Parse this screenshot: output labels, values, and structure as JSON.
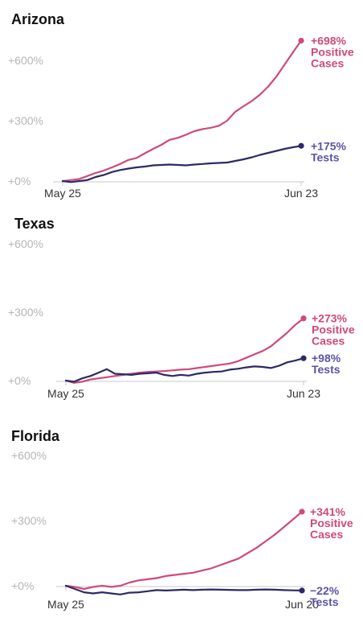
{
  "colors": {
    "cases": "#cf4a78",
    "tests": "#2c2a66",
    "tests_label": "#5d52a8",
    "grid": "#e3e3e3",
    "axis": "#c8c8c8"
  },
  "chart_data": [
    {
      "type": "line",
      "title": "Arizona",
      "x": [
        "May 25",
        "May 26",
        "May 27",
        "May 28",
        "May 29",
        "May 30",
        "May 31",
        "Jun 1",
        "Jun 2",
        "Jun 3",
        "Jun 4",
        "Jun 5",
        "Jun 6",
        "Jun 7",
        "Jun 8",
        "Jun 9",
        "Jun 10",
        "Jun 11",
        "Jun 12",
        "Jun 13",
        "Jun 14",
        "Jun 15",
        "Jun 16",
        "Jun 17",
        "Jun 18",
        "Jun 19",
        "Jun 20",
        "Jun 21",
        "Jun 22",
        "Jun 23"
      ],
      "xticks": [
        "May 25",
        "Jun 23"
      ],
      "yticks": [
        0,
        300,
        600
      ],
      "ytick_labels": [
        "+0%",
        "+300%",
        "+600%"
      ],
      "ylim": [
        -20,
        700
      ],
      "series": [
        {
          "name": "Positive Cases",
          "label_value": "+698%",
          "label_lines": [
            "Positive",
            "Cases"
          ],
          "values": [
            0,
            5,
            10,
            25,
            40,
            52,
            68,
            85,
            105,
            115,
            138,
            160,
            180,
            205,
            215,
            230,
            248,
            258,
            265,
            275,
            300,
            345,
            372,
            398,
            430,
            470,
            520,
            580,
            640,
            698
          ]
        },
        {
          "name": "Tests",
          "label_value": "+175%",
          "label_lines": [
            "Tests"
          ],
          "values": [
            0,
            -5,
            0,
            5,
            20,
            30,
            45,
            55,
            62,
            68,
            72,
            78,
            80,
            82,
            80,
            78,
            82,
            85,
            88,
            90,
            92,
            100,
            108,
            118,
            130,
            140,
            150,
            160,
            168,
            175
          ]
        }
      ]
    },
    {
      "type": "line",
      "title": "Texas",
      "x": [
        "May 25",
        "May 26",
        "May 27",
        "May 28",
        "May 29",
        "May 30",
        "May 31",
        "Jun 1",
        "Jun 2",
        "Jun 3",
        "Jun 4",
        "Jun 5",
        "Jun 6",
        "Jun 7",
        "Jun 8",
        "Jun 9",
        "Jun 10",
        "Jun 11",
        "Jun 12",
        "Jun 13",
        "Jun 14",
        "Jun 15",
        "Jun 16",
        "Jun 17",
        "Jun 18",
        "Jun 19",
        "Jun 20",
        "Jun 21",
        "Jun 22",
        "Jun 23"
      ],
      "xticks": [
        "May 25",
        "Jun 23"
      ],
      "yticks": [
        0,
        300,
        600
      ],
      "ytick_labels": [
        "+0%",
        "+300%",
        "+600%"
      ],
      "ylim": [
        -20,
        700
      ],
      "series": [
        {
          "name": "Positive Cases",
          "label_value": "+273%",
          "label_lines": [
            "Positive",
            "Cases"
          ],
          "values": [
            0,
            -10,
            -5,
            5,
            10,
            15,
            20,
            25,
            30,
            35,
            38,
            40,
            42,
            45,
            48,
            50,
            55,
            60,
            65,
            70,
            75,
            85,
            100,
            115,
            130,
            150,
            180,
            210,
            245,
            273
          ]
        },
        {
          "name": "Tests",
          "label_value": "+98%",
          "label_lines": [
            "Tests"
          ],
          "values": [
            0,
            -5,
            10,
            20,
            35,
            50,
            30,
            28,
            25,
            30,
            32,
            35,
            25,
            20,
            25,
            22,
            30,
            35,
            38,
            40,
            48,
            52,
            58,
            62,
            60,
            55,
            65,
            80,
            88,
            98
          ]
        }
      ]
    },
    {
      "type": "line",
      "title": "Florida",
      "x": [
        "May 25",
        "May 26",
        "May 27",
        "May 28",
        "May 29",
        "May 30",
        "May 31",
        "Jun 1",
        "Jun 2",
        "Jun 3",
        "Jun 4",
        "Jun 5",
        "Jun 6",
        "Jun 7",
        "Jun 8",
        "Jun 9",
        "Jun 10",
        "Jun 11",
        "Jun 12",
        "Jun 13",
        "Jun 14",
        "Jun 15",
        "Jun 16",
        "Jun 17",
        "Jun 18",
        "Jun 19",
        "Jun 20"
      ],
      "xticks": [
        "May 25",
        "Jun 20"
      ],
      "yticks": [
        0,
        300,
        600
      ],
      "ytick_labels": [
        "+0%",
        "+300%",
        "+600%"
      ],
      "ylim": [
        -40,
        700
      ],
      "series": [
        {
          "name": "Positive Cases",
          "label_value": "+341%",
          "label_lines": [
            "Positive",
            "Cases"
          ],
          "values": [
            0,
            -5,
            -15,
            -5,
            0,
            -5,
            0,
            15,
            25,
            30,
            35,
            45,
            50,
            55,
            60,
            70,
            80,
            95,
            110,
            125,
            150,
            175,
            205,
            235,
            270,
            305,
            341
          ]
        },
        {
          "name": "Tests",
          "label_value": "−22%",
          "label_lines": [
            "Tests"
          ],
          "values": [
            0,
            -15,
            -30,
            -35,
            -30,
            -35,
            -40,
            -32,
            -30,
            -25,
            -20,
            -22,
            -20,
            -18,
            -20,
            -18,
            -17,
            -18,
            -19,
            -20,
            -20,
            -18,
            -17,
            -18,
            -20,
            -21,
            -22
          ]
        }
      ]
    }
  ]
}
